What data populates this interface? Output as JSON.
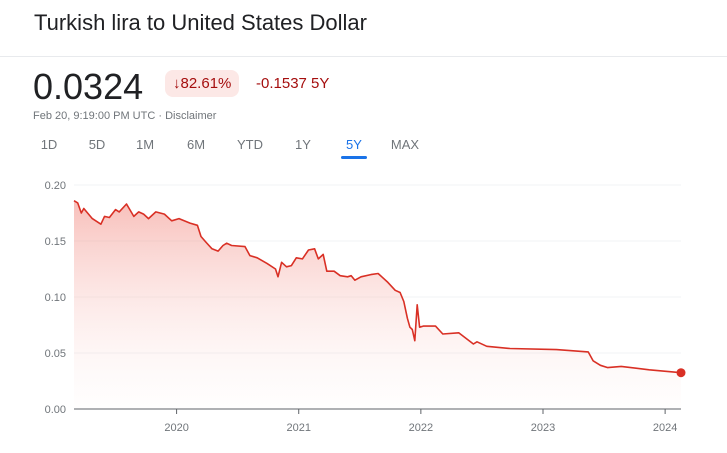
{
  "header": {
    "title": "Turkish lira to United States Dollar"
  },
  "quote": {
    "price": "0.0324",
    "percent_change": "↓82.61%",
    "abs_change": "-0.1537 5Y",
    "timestamp": "Feb 20, 9:19:00 PM UTC · ",
    "disclaimer": "Disclaimer"
  },
  "colors": {
    "line": "#d93025",
    "negative": "#a50e0e",
    "accent": "#1a73e8"
  },
  "tabs": [
    {
      "label": "1D"
    },
    {
      "label": "5D"
    },
    {
      "label": "1M"
    },
    {
      "label": "6M"
    },
    {
      "label": "YTD"
    },
    {
      "label": "1Y"
    },
    {
      "label": "5Y",
      "active": true
    },
    {
      "label": "MAX"
    }
  ],
  "chart_data": {
    "type": "area",
    "title": "",
    "xlabel": "",
    "ylabel": "",
    "ylim": [
      0,
      0.2
    ],
    "xlim": [
      2019.16,
      2024.13
    ],
    "yticks": [
      "0.00",
      "0.05",
      "0.10",
      "0.15",
      "0.20"
    ],
    "xticks": [
      "2020",
      "2021",
      "2022",
      "2023",
      "2024"
    ],
    "grid": true,
    "x": [
      2019.16,
      2019.19,
      2019.22,
      2019.24,
      2019.31,
      2019.38,
      2019.41,
      2019.45,
      2019.5,
      2019.53,
      2019.59,
      2019.65,
      2019.69,
      2019.73,
      2019.77,
      2019.83,
      2019.9,
      2019.96,
      2020.02,
      2020.11,
      2020.17,
      2020.2,
      2020.24,
      2020.29,
      2020.34,
      2020.38,
      2020.41,
      2020.45,
      2020.56,
      2020.6,
      2020.66,
      2020.74,
      2020.81,
      2020.83,
      2020.86,
      2020.9,
      2020.94,
      2020.98,
      2021.03,
      2021.08,
      2021.13,
      2021.16,
      2021.2,
      2021.23,
      2021.29,
      2021.34,
      2021.4,
      2021.43,
      2021.46,
      2021.51,
      2021.59,
      2021.65,
      2021.68,
      2021.73,
      2021.79,
      2021.83,
      2021.86,
      2021.89,
      2021.91,
      2021.93,
      2021.95,
      2021.97,
      2021.99,
      2022.02,
      2022.12,
      2022.18,
      2022.31,
      2022.43,
      2022.46,
      2022.54,
      2022.73,
      2023.11,
      2023.37,
      2023.41,
      2023.47,
      2023.53,
      2023.64,
      2023.87,
      2024.13
    ],
    "values": [
      0.186,
      0.184,
      0.175,
      0.179,
      0.17,
      0.165,
      0.172,
      0.171,
      0.178,
      0.176,
      0.183,
      0.172,
      0.176,
      0.174,
      0.17,
      0.176,
      0.174,
      0.168,
      0.17,
      0.166,
      0.164,
      0.154,
      0.149,
      0.143,
      0.141,
      0.146,
      0.148,
      0.146,
      0.145,
      0.137,
      0.135,
      0.13,
      0.125,
      0.118,
      0.131,
      0.127,
      0.128,
      0.135,
      0.134,
      0.142,
      0.143,
      0.134,
      0.138,
      0.123,
      0.123,
      0.119,
      0.118,
      0.119,
      0.115,
      0.118,
      0.12,
      0.121,
      0.118,
      0.113,
      0.106,
      0.104,
      0.096,
      0.081,
      0.073,
      0.071,
      0.061,
      0.093,
      0.073,
      0.074,
      0.074,
      0.067,
      0.068,
      0.058,
      0.06,
      0.056,
      0.054,
      0.053,
      0.051,
      0.043,
      0.039,
      0.037,
      0.038,
      0.035,
      0.0324
    ]
  }
}
